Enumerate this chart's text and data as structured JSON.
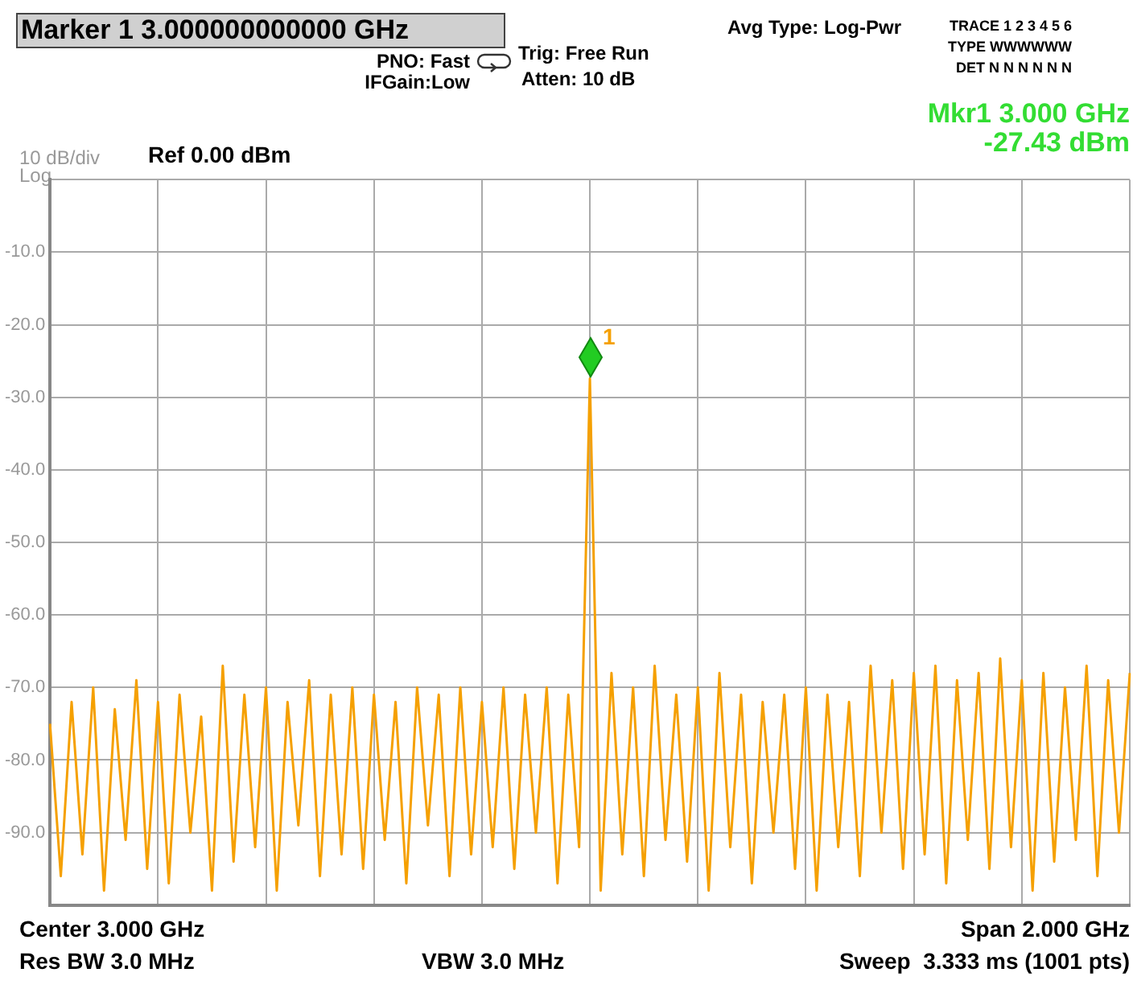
{
  "chart_data": {
    "type": "line",
    "title": "Marker 1 3.000000000000 GHz",
    "categories": [
      null,
      null,
      null,
      null,
      null,
      null,
      null,
      null,
      null,
      null,
      null,
      null,
      null,
      null,
      null,
      null,
      null,
      null,
      null,
      null,
      null,
      null,
      null,
      null,
      null,
      null,
      null,
      null,
      null,
      null,
      null,
      null,
      null,
      null,
      null,
      null,
      null,
      null,
      null,
      null,
      null,
      null,
      null,
      null,
      null,
      null,
      null,
      null,
      null,
      null,
      null,
      null,
      null,
      null,
      null,
      null,
      null,
      null,
      null,
      null,
      null,
      null,
      null,
      null,
      null,
      null,
      null,
      null,
      null,
      null,
      null,
      null,
      null,
      null,
      null,
      null,
      null,
      null,
      null,
      null,
      null,
      null,
      null,
      null,
      null,
      null,
      null,
      null,
      null,
      null,
      null,
      null,
      null,
      null,
      null,
      null,
      null,
      null,
      null,
      null,
      null
    ],
    "series": [
      {
        "color": "#f5a000",
        "values": [
          -75,
          -96,
          -72,
          -93,
          -70,
          -98,
          -73,
          -91,
          -69,
          -95,
          -72,
          -97,
          -71,
          -90,
          -74,
          -98,
          -67,
          -94,
          -71,
          -92,
          -70,
          -98,
          -72,
          -89,
          -69,
          -96,
          -71,
          -93,
          -70,
          -95,
          -71,
          -91,
          -72,
          -97,
          -70,
          -89,
          -71,
          -96,
          -70,
          -93,
          -72,
          -92,
          -70,
          -95,
          -71,
          -90,
          -70,
          -97,
          -71,
          -92,
          -27.43,
          -98,
          -68,
          -93,
          -70,
          -96,
          -67,
          -91,
          -71,
          -94,
          -70,
          -98,
          -68,
          -92,
          -71,
          -97,
          -72,
          -90,
          -71,
          -95,
          -70,
          -98,
          -71,
          -92,
          -72,
          -96,
          -67,
          -90,
          -69,
          -95,
          -68,
          -93,
          -67,
          -97,
          -69,
          -91,
          -68,
          -95,
          -66,
          -92,
          -69,
          -98,
          -68,
          -94,
          -70,
          -91,
          -67,
          -96,
          -69,
          -90,
          -68
        ]
      }
    ],
    "ylim": [
      -100,
      0
    ],
    "yticks": [
      {
        "value": -100,
        "label": null
      },
      {
        "value": -90,
        "label": "-90.0"
      },
      {
        "value": -80,
        "label": "-80.0"
      },
      {
        "value": -70,
        "label": "-70.0"
      },
      {
        "value": -60,
        "label": "-60.0"
      },
      {
        "value": -50,
        "label": "-50.0"
      },
      {
        "value": -40,
        "label": "-40.0"
      },
      {
        "value": -30,
        "label": "-30.0"
      },
      {
        "value": -20,
        "label": "-20.0"
      },
      {
        "value": -10,
        "label": "-10.0"
      },
      {
        "value": 0,
        "label": null
      }
    ],
    "tick_labels": "y",
    "grid": true,
    "legend": false,
    "annotations": [
      "PNO: Fast",
      "IFGain:Low",
      "Trig: Free Run",
      "Atten: 10 dB",
      "Avg Type: Log-Pwr",
      "TRACE 1 2 3 4 5 6",
      "TYPE WWWWWW",
      "DET N N N N N N",
      "Mkr1 3.000 GHz",
      "-27.43 dBm",
      "10 dB/div",
      "Ref 0.00 dBm",
      "Log",
      "Center 3.000 GHz",
      "Span 2.000 GHz",
      "Res BW 3.0 MHz",
      "VBW 3.0 MHz",
      "Sweep  3.333 ms (1001 pts)",
      "1"
    ]
  }
}
